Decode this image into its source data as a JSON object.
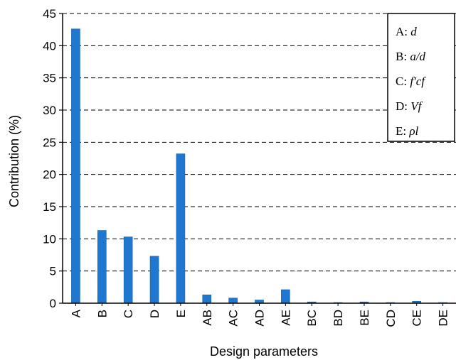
{
  "chart_data": {
    "type": "bar",
    "categories": [
      "A",
      "B",
      "C",
      "D",
      "E",
      "AB",
      "AC",
      "AD",
      "AE",
      "BC",
      "BD",
      "BE",
      "CD",
      "CE",
      "DE"
    ],
    "values": [
      42.6,
      11.3,
      10.3,
      7.3,
      23.2,
      1.3,
      0.8,
      0.5,
      2.1,
      0.2,
      0.1,
      0.2,
      0.1,
      0.3,
      0.1
    ],
    "title": "",
    "xlabel": "Design parameters",
    "ylabel": "Contribution (%)",
    "ylim": [
      0,
      45
    ],
    "yticks": [
      0,
      5,
      10,
      15,
      20,
      25,
      30,
      35,
      40,
      45
    ],
    "grid": "horizontal dashed",
    "legend_position": "top-right",
    "bar_color": "#1f77d0",
    "legend": [
      {
        "key": "A:",
        "desc": "d"
      },
      {
        "key": "B:",
        "desc": "a/d"
      },
      {
        "key": "C:",
        "desc": "f′cf"
      },
      {
        "key": "D:",
        "desc": "Vf"
      },
      {
        "key": "E:",
        "desc": "ρl"
      }
    ]
  }
}
